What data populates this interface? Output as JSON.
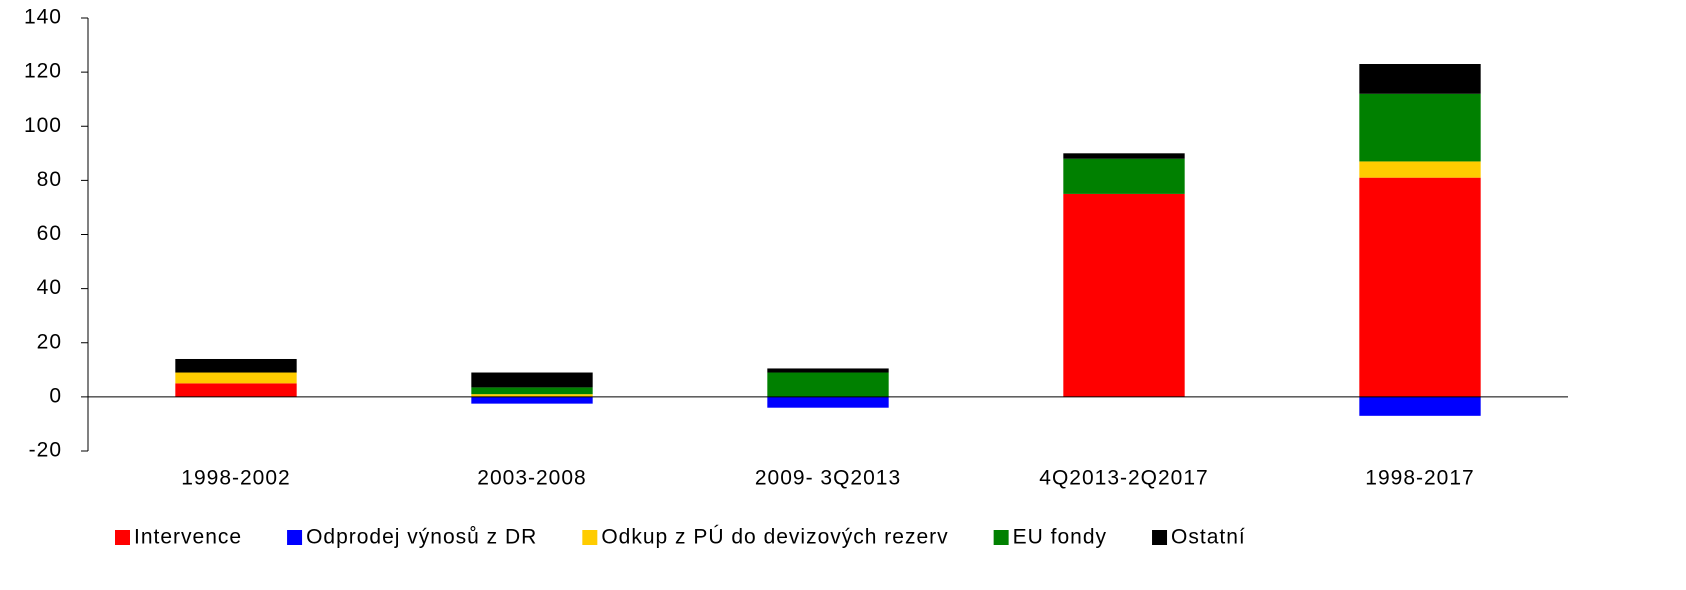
{
  "chart_data": {
    "type": "stacked_bar",
    "categories": [
      "1998-2002",
      "2003-2008",
      "2009- 3Q2013",
      "4Q2013-2Q2017",
      "1998-2017"
    ],
    "series": [
      {
        "name": "Intervence",
        "color": "#ff0000",
        "values": [
          5,
          0,
          0,
          75,
          81
        ]
      },
      {
        "name": "Odprodej výnosů z DR",
        "color": "#0000ff",
        "values": [
          0,
          -2.5,
          -4,
          0,
          -7
        ]
      },
      {
        "name": "Odkup z PÚ do devizových rezerv",
        "color": "#ffcc00",
        "values": [
          4,
          1,
          0,
          0,
          6
        ]
      },
      {
        "name": "EU fondy",
        "color": "#008000",
        "values": [
          0,
          2.5,
          9,
          13,
          25
        ]
      },
      {
        "name": "Ostatní",
        "color": "#000000",
        "values": [
          5,
          5.5,
          1.5,
          2,
          11
        ]
      }
    ],
    "ylim": [
      -20,
      140
    ],
    "yticks": [
      -20,
      0,
      20,
      40,
      60,
      80,
      100,
      120,
      140
    ],
    "legend": "bottom"
  }
}
